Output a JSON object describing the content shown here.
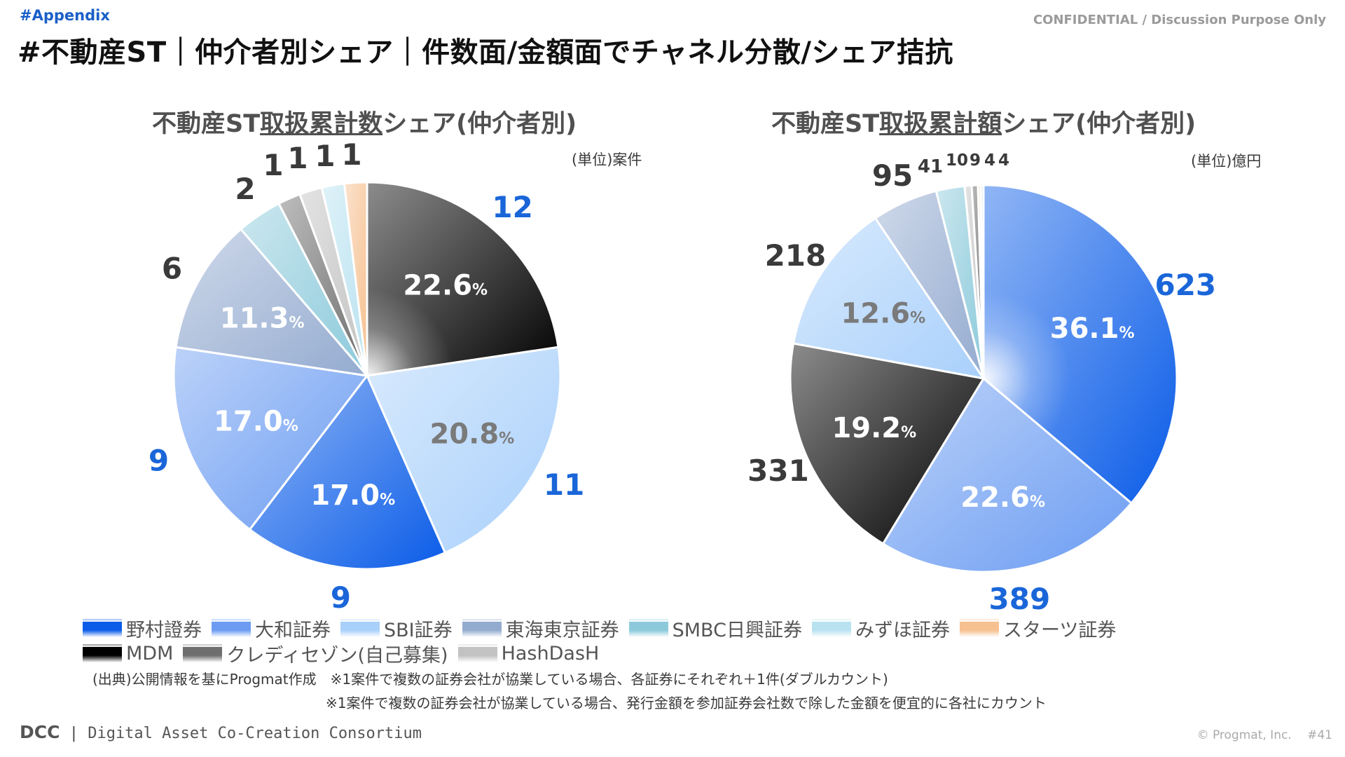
{
  "header": {
    "tag": "#Appendix",
    "confidential": "CONFIDENTIAL / Discussion Purpose Only",
    "title": "#不動産ST｜仲介者別シェア｜件数面/金額面でチャネル分散/シェア拮抗"
  },
  "chart_titles": {
    "left": {
      "pre": "不動産ST",
      "under": "取扱累計数",
      "post": "シェア(仲介者別)"
    },
    "right": {
      "pre": "不動産ST",
      "under": "取扱累計額",
      "post": "シェア(仲介者別)"
    }
  },
  "units": {
    "left": "(単位)案件",
    "right": "(単位)億円"
  },
  "colors": {
    "野村證券": "#0a5ce8",
    "大和証券": "#6b9cf2",
    "SBI証券": "#a9d0fb",
    "東海東京証券": "#94abd0",
    "SMBC日興証券": "#8ccadb",
    "みずほ証券": "#b9e2f0",
    "スターツ証券": "#f6c090",
    "MDM": "#000000",
    "クレディセゾン(自己募集)": "#6e6e6e",
    "HashDasH": "#c2c2c2"
  },
  "chart_data": [
    {
      "type": "pie",
      "title": "不動産ST取扱累計数シェア(仲介者別)",
      "unit": "(単位)案件",
      "slices": [
        {
          "name": "MDM",
          "value": 12,
          "pct": "22.6"
        },
        {
          "name": "SBI証券",
          "value": 11,
          "pct": "20.8"
        },
        {
          "name": "野村證券",
          "value": 9,
          "pct": "17.0"
        },
        {
          "name": "大和証券",
          "value": 9,
          "pct": "17.0"
        },
        {
          "name": "東海東京証券",
          "value": 6,
          "pct": "11.3"
        },
        {
          "name": "SMBC日興証券",
          "value": 2,
          "pct": ""
        },
        {
          "name": "クレディセゾン(自己募集)",
          "value": 1,
          "pct": ""
        },
        {
          "name": "HashDasH",
          "value": 1,
          "pct": ""
        },
        {
          "name": "みずほ証券",
          "value": 1,
          "pct": ""
        },
        {
          "name": "スターツ証券",
          "value": 1,
          "pct": ""
        }
      ]
    },
    {
      "type": "pie",
      "title": "不動産ST取扱累計額シェア(仲介者別)",
      "unit": "(単位)億円",
      "slices": [
        {
          "name": "野村證券",
          "value": 623,
          "pct": "36.1"
        },
        {
          "name": "大和証券",
          "value": 389,
          "pct": "22.6"
        },
        {
          "name": "MDM",
          "value": 331,
          "pct": "19.2"
        },
        {
          "name": "SBI証券",
          "value": 218,
          "pct": "12.6"
        },
        {
          "name": "東海東京証券",
          "value": 95,
          "pct": ""
        },
        {
          "name": "SMBC日興証券",
          "value": 41,
          "pct": ""
        },
        {
          "name": "HashDasH",
          "value": 10,
          "pct": ""
        },
        {
          "name": "クレディセゾン(自己募集)",
          "value": 9,
          "pct": ""
        },
        {
          "name": "スターツ証券",
          "value": 4,
          "pct": ""
        },
        {
          "name": "みずほ証券",
          "value": 4,
          "pct": ""
        }
      ]
    }
  ],
  "pct_symbol": "%",
  "legend": {
    "row1": [
      "野村證券",
      "大和証券",
      "SBI証券",
      "東海東京証券",
      "SMBC日興証券",
      "みずほ証券",
      "スターツ証券"
    ],
    "row2": [
      "MDM",
      "クレディセゾン(自己募集)",
      "HashDasH"
    ]
  },
  "notes": {
    "line1": "(出典)公開情報を基にProgmat作成　※1案件で複数の証券会社が協業している場合、各証券にそれぞれ＋1件(ダブルカウント)",
    "line2": "※1案件で複数の証券会社が協業している場合、発行金額を参加証券会社数で除した金額を便宜的に各社にカウント"
  },
  "footer": {
    "brand_short": "DCC",
    "brand_long": "Digital Asset Co-Creation Consortium",
    "copyright": "© Progmat, Inc.　 #41"
  }
}
